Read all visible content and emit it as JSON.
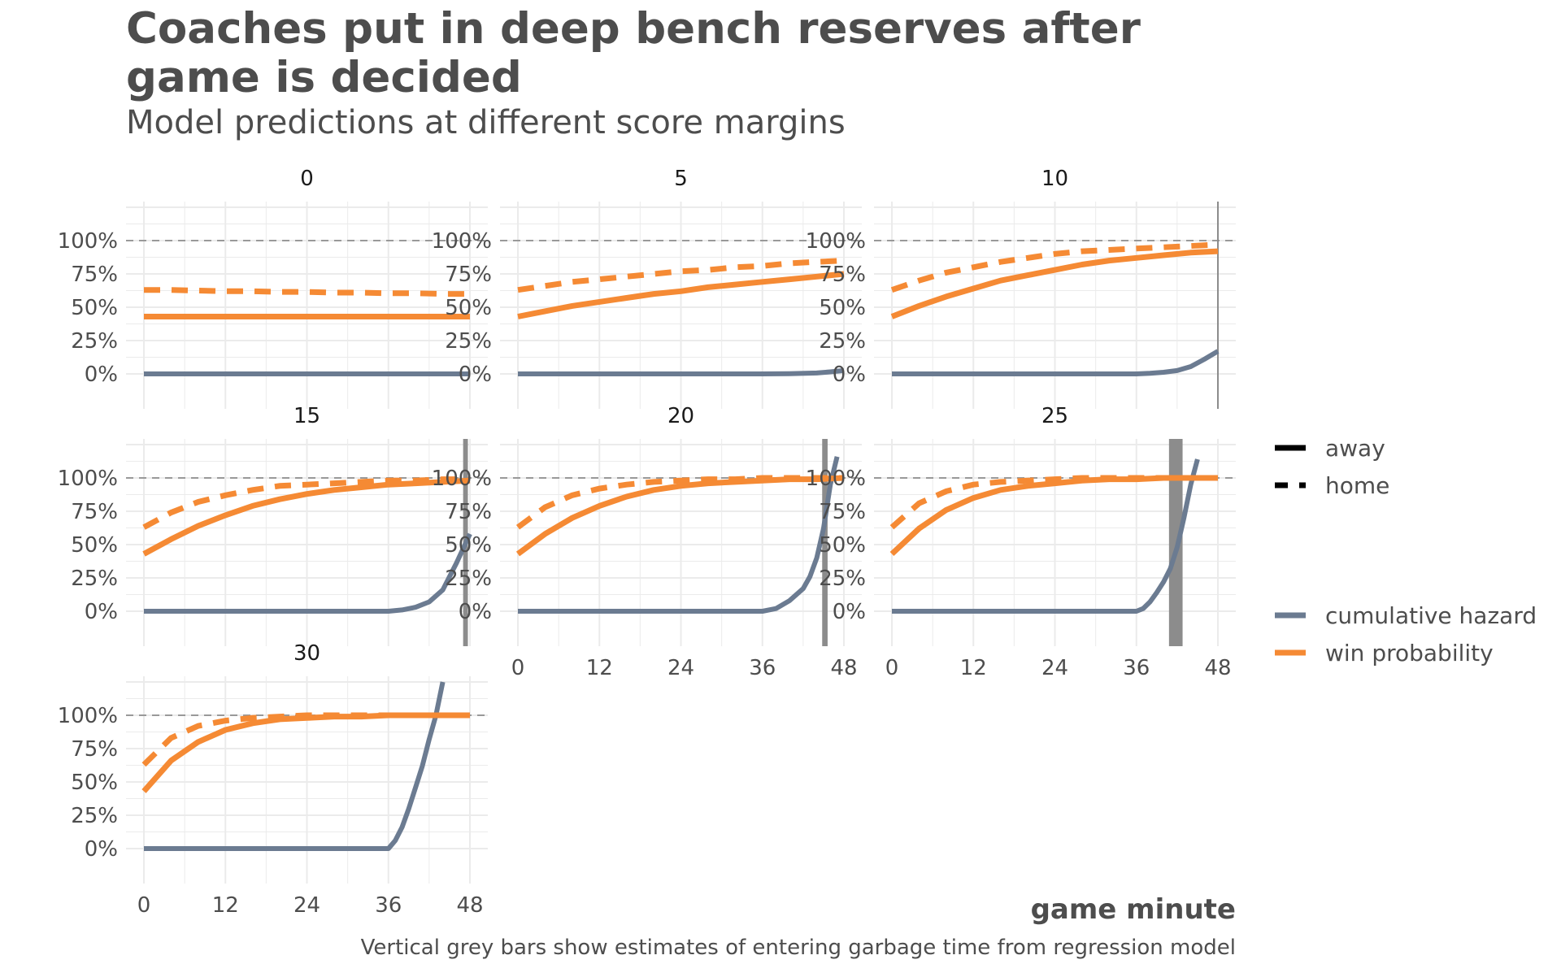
{
  "title": "Coaches put in deep bench reserves after game is decided",
  "subtitle": "Model predictions at different score margins",
  "colors": {
    "win_probability": "#f58a34",
    "cumulative_hazard": "#6b7b91",
    "garbage_bar": "#8c8c8c",
    "reference_line": "#999999",
    "grid": "#ebebeb"
  },
  "chart_data": {
    "type": "line",
    "facet_by": "score margin",
    "xlabel": "game minute",
    "ylabel": "",
    "caption": "Vertical grey bars show estimates of entering garbage time from regression model",
    "xlim": [
      0,
      48
    ],
    "ylim": [
      0,
      1.25
    ],
    "x_ticks": [
      0,
      12,
      24,
      36,
      48
    ],
    "x_tick_labels": [
      "0",
      "12",
      "24",
      "36",
      "48"
    ],
    "y_ticks": [
      0,
      0.25,
      0.5,
      0.75,
      1.0
    ],
    "y_tick_labels": [
      "0%",
      "25%",
      "50%",
      "75%",
      "100%"
    ],
    "reference_line_y": 1.0,
    "legend": {
      "linetype_entries": [
        "away",
        "home"
      ],
      "color_entries": [
        "cumulative hazard",
        "win probability"
      ],
      "placement": "right"
    },
    "x": [
      0,
      4,
      8,
      12,
      16,
      20,
      24,
      28,
      32,
      36,
      40,
      44,
      48
    ],
    "panels": [
      {
        "label": "0",
        "win_probability_away": [
          0.43,
          0.43,
          0.43,
          0.43,
          0.43,
          0.43,
          0.43,
          0.43,
          0.43,
          0.43,
          0.43,
          0.43,
          0.43
        ],
        "win_probability_home": [
          0.63,
          0.63,
          0.625,
          0.62,
          0.62,
          0.615,
          0.615,
          0.61,
          0.61,
          0.605,
          0.605,
          0.6,
          0.6
        ],
        "cumulative_hazard": {
          "x": [
            0,
            12,
            24,
            36,
            48
          ],
          "y": [
            0,
            0,
            0,
            0,
            0
          ]
        },
        "garbage_time": null
      },
      {
        "label": "5",
        "win_probability_away": [
          0.43,
          0.47,
          0.51,
          0.54,
          0.57,
          0.6,
          0.62,
          0.65,
          0.67,
          0.69,
          0.71,
          0.73,
          0.75
        ],
        "win_probability_home": [
          0.63,
          0.66,
          0.69,
          0.71,
          0.73,
          0.75,
          0.77,
          0.78,
          0.8,
          0.81,
          0.83,
          0.84,
          0.85
        ],
        "cumulative_hazard": {
          "x": [
            0,
            12,
            24,
            36,
            40,
            44,
            46,
            48
          ],
          "y": [
            0,
            0,
            0,
            0,
            0.002,
            0.007,
            0.015,
            0.025
          ]
        },
        "garbage_time": null
      },
      {
        "label": "10",
        "win_probability_away": [
          0.43,
          0.51,
          0.58,
          0.64,
          0.7,
          0.74,
          0.78,
          0.82,
          0.85,
          0.87,
          0.89,
          0.91,
          0.92
        ],
        "win_probability_home": [
          0.63,
          0.7,
          0.76,
          0.8,
          0.84,
          0.87,
          0.9,
          0.92,
          0.93,
          0.94,
          0.95,
          0.96,
          0.97
        ],
        "cumulative_hazard": {
          "x": [
            0,
            12,
            24,
            36,
            38,
            40,
            42,
            44,
            46,
            48
          ],
          "y": [
            0,
            0,
            0,
            0,
            0.005,
            0.012,
            0.025,
            0.055,
            0.11,
            0.17
          ]
        },
        "garbage_time": {
          "start": 48,
          "end": 48
        }
      },
      {
        "label": "15",
        "win_probability_away": [
          0.43,
          0.54,
          0.64,
          0.72,
          0.79,
          0.84,
          0.88,
          0.91,
          0.93,
          0.95,
          0.96,
          0.97,
          0.98
        ],
        "win_probability_home": [
          0.63,
          0.74,
          0.82,
          0.87,
          0.91,
          0.94,
          0.95,
          0.96,
          0.97,
          0.98,
          0.98,
          0.99,
          0.99
        ],
        "cumulative_hazard": {
          "x": [
            0,
            12,
            24,
            36,
            38,
            40,
            42,
            44,
            46,
            48
          ],
          "y": [
            0,
            0,
            0,
            0,
            0.01,
            0.03,
            0.07,
            0.16,
            0.36,
            0.58
          ]
        },
        "garbage_time": {
          "start": 47,
          "end": 47.7
        }
      },
      {
        "label": "20",
        "win_probability_away": [
          0.43,
          0.58,
          0.7,
          0.79,
          0.86,
          0.91,
          0.94,
          0.96,
          0.97,
          0.98,
          0.99,
          0.99,
          1.0
        ],
        "win_probability_home": [
          0.63,
          0.78,
          0.87,
          0.92,
          0.95,
          0.97,
          0.98,
          0.99,
          0.99,
          1.0,
          1.0,
          1.0,
          1.0
        ],
        "cumulative_hazard": {
          "x": [
            0,
            12,
            24,
            36,
            38,
            40,
            42,
            43,
            44,
            45,
            46,
            47
          ],
          "y": [
            0,
            0,
            0,
            0,
            0.02,
            0.08,
            0.17,
            0.26,
            0.4,
            0.62,
            0.95,
            1.16
          ]
        },
        "garbage_time": {
          "start": 44.8,
          "end": 45.6
        }
      },
      {
        "label": "25",
        "win_probability_away": [
          0.43,
          0.62,
          0.76,
          0.85,
          0.91,
          0.94,
          0.96,
          0.98,
          0.99,
          0.99,
          1.0,
          1.0,
          1.0
        ],
        "win_probability_home": [
          0.63,
          0.81,
          0.9,
          0.95,
          0.97,
          0.98,
          0.99,
          1.0,
          1.0,
          1.0,
          1.0,
          1.0,
          1.0
        ],
        "cumulative_hazard": {
          "x": [
            0,
            12,
            24,
            36,
            37,
            38,
            39,
            40,
            41,
            42,
            43,
            44,
            45
          ],
          "y": [
            0,
            0,
            0,
            0,
            0.02,
            0.07,
            0.14,
            0.22,
            0.32,
            0.48,
            0.7,
            0.95,
            1.14
          ]
        },
        "garbage_time": {
          "start": 40.8,
          "end": 42.8
        }
      },
      {
        "label": "30",
        "win_probability_away": [
          0.43,
          0.66,
          0.8,
          0.89,
          0.94,
          0.97,
          0.98,
          0.99,
          0.99,
          1.0,
          1.0,
          1.0,
          1.0
        ],
        "win_probability_home": [
          0.63,
          0.83,
          0.92,
          0.96,
          0.98,
          0.99,
          1.0,
          1.0,
          1.0,
          1.0,
          1.0,
          1.0,
          1.0
        ],
        "cumulative_hazard": {
          "x": [
            0,
            12,
            24,
            36,
            37,
            38,
            39,
            40,
            41,
            42,
            43,
            44
          ],
          "y": [
            0,
            0,
            0,
            0,
            0.06,
            0.16,
            0.3,
            0.46,
            0.62,
            0.82,
            1.0,
            1.25
          ]
        },
        "garbage_time": null
      }
    ]
  }
}
